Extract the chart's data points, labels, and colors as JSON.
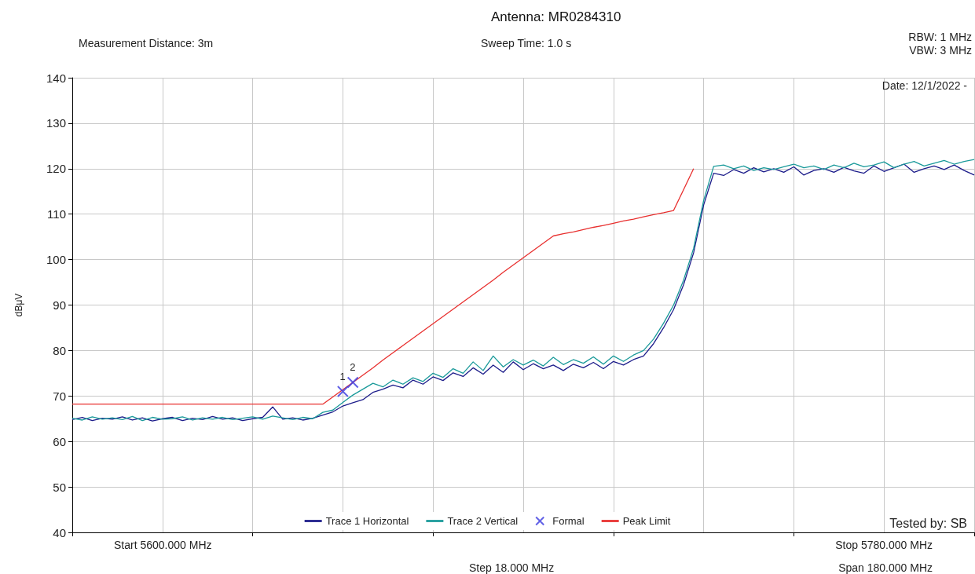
{
  "chart_data": {
    "type": "line",
    "title": "Antenna: MR0284310",
    "ylabel": "dBμV",
    "annotations": [
      "Measurement Distance: 3m",
      "Sweep Time: 1.0 s",
      "RBW: 1 MHz",
      "VBW: 3 MHz",
      "Date: 12/1/2022 -",
      "Tested by: SB",
      "Start 5600.000 MHz",
      "Stop 5780.000 MHz",
      "Step 18.000 MHz",
      "Span 180.000 MHz",
      {
        "text": "1",
        "y": 71
      },
      {
        "text": "2",
        "y": 73
      }
    ],
    "categories": [
      null,
      null,
      null,
      null,
      null,
      null,
      null,
      null,
      null,
      null,
      null,
      null,
      null,
      null,
      null,
      null,
      null,
      null,
      null,
      null,
      null,
      null,
      null,
      null,
      null,
      null,
      null,
      null,
      null,
      null,
      null,
      null,
      null,
      null,
      null,
      null,
      null,
      null,
      null,
      null,
      null,
      null,
      null,
      null,
      null,
      null,
      null,
      null,
      null,
      null,
      null,
      null,
      null,
      null,
      null,
      null,
      null,
      null,
      null,
      null,
      null,
      null,
      null,
      null,
      null,
      null,
      null,
      null,
      null,
      null,
      null,
      null,
      null,
      null,
      null,
      null,
      null,
      null,
      null,
      null,
      null,
      null,
      null,
      null,
      null,
      null,
      null,
      null,
      null,
      null,
      null
    ],
    "series": [
      {
        "name": "Trace 1 Horizontal",
        "color": "#1c1c8a",
        "values": [
          64.8,
          65.3,
          64.6,
          65.1,
          64.9,
          65.4,
          64.7,
          65.2,
          64.5,
          65.0,
          65.3,
          64.6,
          65.1,
          64.8,
          65.5,
          64.9,
          65.2,
          64.6,
          65.0,
          65.3,
          67.6,
          64.9,
          65.2,
          64.7,
          65.1,
          65.8,
          66.5,
          67.8,
          68.5,
          69.2,
          70.8,
          71.5,
          72.4,
          71.8,
          73.5,
          72.6,
          74.2,
          73.4,
          75.1,
          74.3,
          76.2,
          74.8,
          76.8,
          75.2,
          77.5,
          75.8,
          77.1,
          76.0,
          76.8,
          75.6,
          77.0,
          76.2,
          77.4,
          76.0,
          77.6,
          76.8,
          78.0,
          78.8,
          81.5,
          85.0,
          89.0,
          94.5,
          101.5,
          112.0,
          119.0,
          118.5,
          119.8,
          119.0,
          120.2,
          119.3,
          120.0,
          119.2,
          120.4,
          118.6,
          119.6,
          120.0,
          119.2,
          120.3,
          119.5,
          119.0,
          120.6,
          119.4,
          120.2,
          121.0,
          119.2,
          120.0,
          120.6,
          119.8,
          120.8,
          119.6,
          118.6
        ]
      },
      {
        "name": "Trace 2 Vertical",
        "color": "#1a9a9a",
        "values": [
          65.1,
          64.7,
          65.4,
          64.9,
          65.2,
          64.8,
          65.5,
          64.6,
          65.3,
          64.9,
          65.0,
          65.4,
          64.7,
          65.2,
          64.9,
          65.3,
          64.8,
          65.1,
          65.4,
          64.9,
          65.6,
          65.2,
          64.8,
          65.3,
          65.0,
          66.4,
          66.9,
          68.6,
          70.2,
          71.5,
          72.8,
          72.0,
          73.5,
          72.6,
          74.0,
          73.2,
          75.0,
          74.1,
          76.0,
          75.0,
          77.5,
          75.6,
          78.8,
          76.4,
          78.0,
          76.8,
          77.9,
          76.6,
          78.5,
          76.9,
          78.0,
          77.2,
          78.6,
          77.0,
          78.8,
          77.6,
          79.0,
          80.0,
          82.5,
          86.0,
          90.0,
          95.5,
          102.5,
          113.0,
          120.5,
          120.8,
          120.0,
          120.6,
          119.6,
          120.2,
          119.8,
          120.4,
          121.0,
          120.2,
          120.6,
          119.8,
          120.8,
          120.2,
          121.2,
          120.4,
          120.8,
          121.5,
          120.2,
          121.0,
          121.6,
          120.6,
          121.2,
          121.8,
          121.0,
          121.6,
          122.0
        ]
      },
      {
        "name": "Formal",
        "type": "scatter",
        "marker": "cross",
        "color": "#3a3ae0",
        "values": [
          null,
          null,
          null,
          null,
          null,
          null,
          null,
          null,
          null,
          null,
          null,
          null,
          null,
          null,
          null,
          null,
          null,
          null,
          null,
          null,
          null,
          null,
          null,
          null,
          null,
          null,
          null,
          71,
          73,
          null,
          null,
          null,
          null,
          null,
          null,
          null,
          null,
          null,
          null,
          null,
          null,
          null,
          null,
          null,
          null,
          null,
          null,
          null,
          null,
          null,
          null,
          null,
          null,
          null,
          null,
          null,
          null,
          null,
          null,
          null,
          null,
          null,
          null,
          null,
          null,
          null,
          null,
          null,
          null,
          null,
          null,
          null,
          null,
          null,
          null,
          null,
          null,
          null,
          null,
          null,
          null,
          null,
          null,
          null,
          null,
          null,
          null,
          null,
          null,
          null,
          null
        ]
      },
      {
        "name": "Peak Limit",
        "color": "#e8302f",
        "values": [
          68.2,
          68.2,
          68.2,
          68.2,
          68.2,
          68.2,
          68.2,
          68.2,
          68.2,
          68.2,
          68.2,
          68.2,
          68.2,
          68.2,
          68.2,
          68.2,
          68.2,
          68.2,
          68.2,
          68.2,
          68.2,
          68.2,
          68.2,
          68.2,
          68.2,
          68.2,
          69.8,
          71.4,
          73.0,
          74.6,
          76.2,
          77.9,
          79.5,
          81.1,
          82.7,
          84.3,
          85.9,
          87.5,
          89.1,
          90.7,
          92.3,
          93.9,
          95.5,
          97.2,
          98.8,
          100.4,
          102.0,
          103.6,
          105.2,
          105.7,
          106.1,
          106.6,
          107.1,
          107.5,
          108.0,
          108.5,
          108.9,
          109.4,
          109.9,
          110.3,
          110.8,
          115.4,
          120.0,
          null,
          null,
          null,
          null,
          null,
          null,
          null,
          null,
          null,
          null,
          null,
          null,
          null,
          null,
          null,
          null,
          null,
          null,
          null,
          null,
          null,
          null,
          null,
          null,
          null,
          null,
          null,
          null
        ]
      }
    ],
    "ylim": [
      40,
      140
    ],
    "yticks": [
      40,
      50,
      60,
      70,
      80,
      90,
      100,
      110,
      120,
      130,
      140
    ],
    "tick_labels": "y",
    "grid": true,
    "legend": "bottom",
    "line_style": "solid",
    "marker": "none"
  }
}
